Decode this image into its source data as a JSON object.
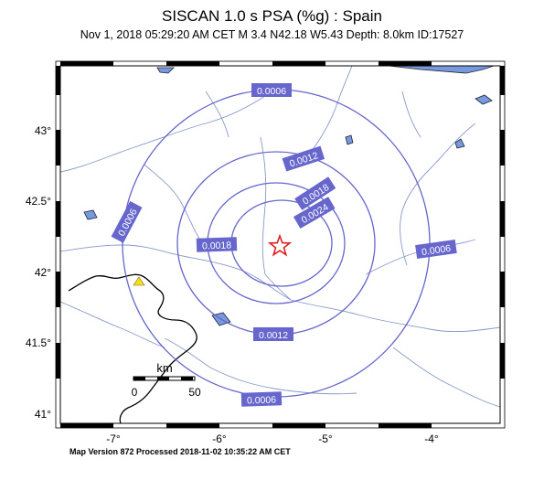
{
  "title": "SISCAN 1.0 s PSA (%g) : Spain",
  "subtitle": "Nov  1, 2018 05:29:20 AM CET   M 3.4   N42.18 W5.43   Depth: 8.0km   ID:17527",
  "footer": "Map Version 872 Processed 2018-11-02 10:35:22 AM CET",
  "axes": {
    "lat_labels": [
      "43°",
      "42.5°",
      "42°",
      "41.5°",
      "41°"
    ],
    "lon_labels": [
      "-7°",
      "-6°",
      "-5°",
      "-4°"
    ]
  },
  "contours": [
    {
      "label": "0.0006",
      "color": "#6666cc"
    },
    {
      "label": "0.0006",
      "color": "#6666cc"
    },
    {
      "label": "0.0006",
      "color": "#6666cc"
    },
    {
      "label": "0.0006",
      "color": "#6666cc"
    },
    {
      "label": "0.0012",
      "color": "#6666cc"
    },
    {
      "label": "0.0012",
      "color": "#6666cc"
    },
    {
      "label": "0.0018",
      "color": "#6666cc"
    },
    {
      "label": "0.0018",
      "color": "#6666cc"
    },
    {
      "label": "0.0024",
      "color": "#6666cc"
    }
  ],
  "scale_bar": {
    "unit": "km",
    "start": "0",
    "end": "50"
  },
  "epicenter": {
    "icon": "star-icon",
    "color": "#dd2222"
  },
  "station": {
    "icon": "triangle-icon",
    "color": "#f0e020"
  },
  "colors": {
    "water": "#7799dd",
    "contour": "#6666cc",
    "label_bg": "#6666cc",
    "river": "#8899cc"
  }
}
